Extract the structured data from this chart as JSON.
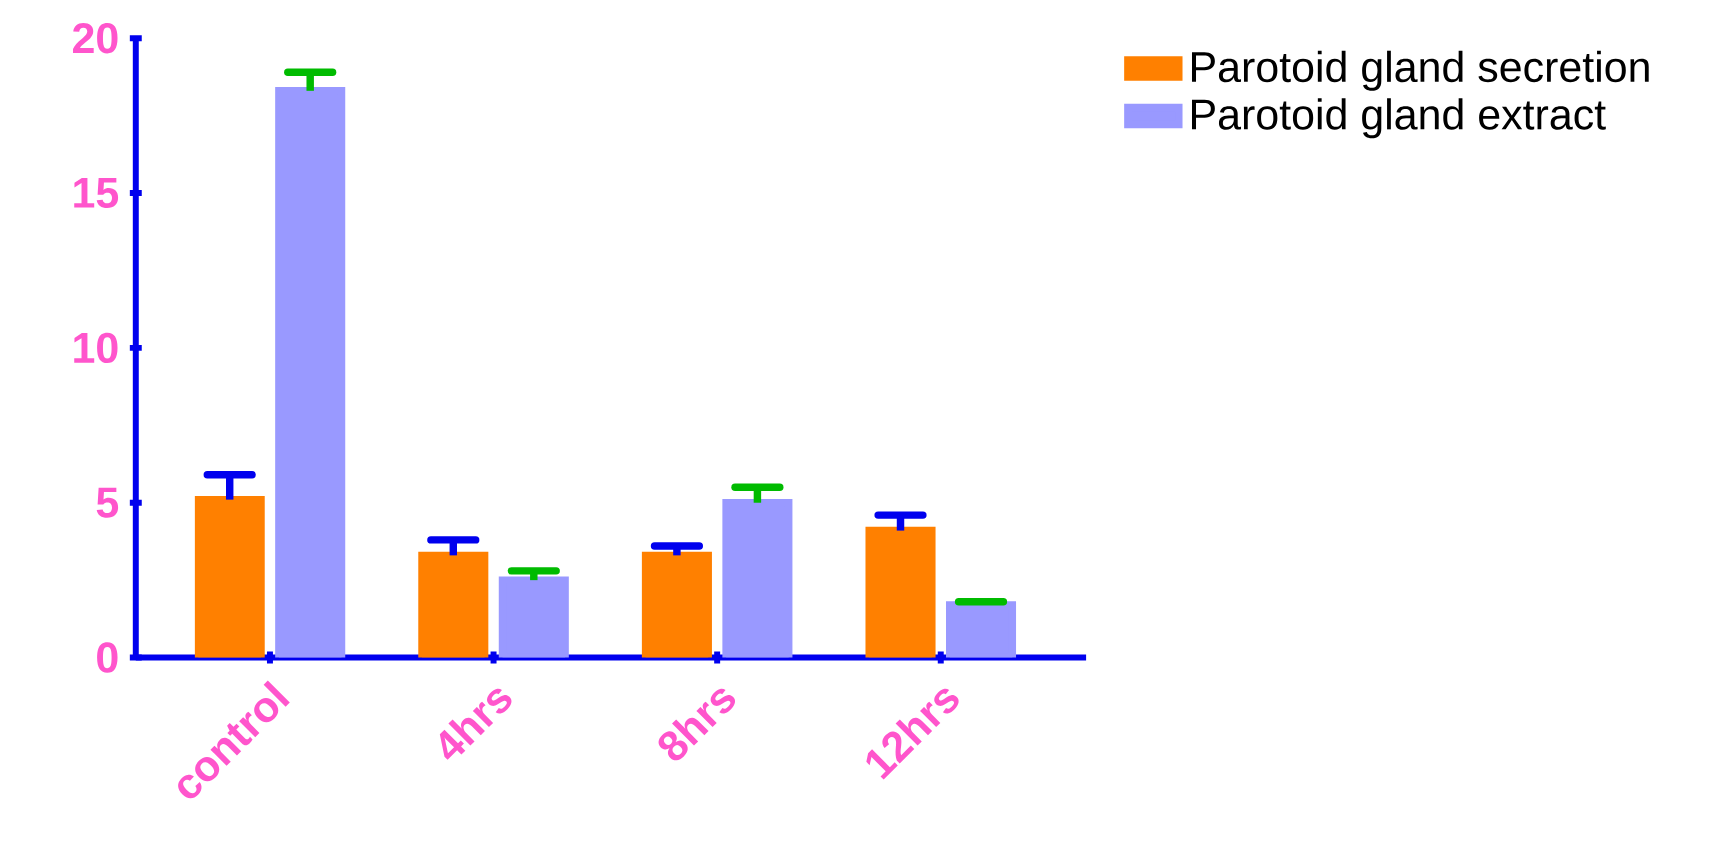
{
  "chart_data": {
    "type": "bar",
    "categories": [
      "control",
      "4hrs",
      "8hrs",
      "12hrs"
    ],
    "series": [
      {
        "name": "Parotoid gland secretion",
        "color": "#ff8000",
        "values": [
          5.1,
          3.3,
          3.3,
          4.1
        ],
        "errors": [
          [
            5.1,
            5.9
          ],
          [
            3.3,
            3.8
          ],
          [
            3.3,
            3.6
          ],
          [
            4.1,
            4.6
          ]
        ]
      },
      {
        "name": "Parotoid gland extract",
        "color": "#9999ff",
        "values": [
          18.3,
          2.5,
          5.0,
          1.7
        ],
        "errors": [
          [
            18.3,
            18.9
          ],
          [
            2.5,
            2.8
          ],
          [
            5.0,
            5.5
          ],
          [
            1.7,
            1.8
          ]
        ]
      }
    ],
    "ylim": [
      0,
      20
    ],
    "yticks": [
      0,
      5,
      10,
      15,
      20
    ],
    "grid": false,
    "legend": "top right"
  }
}
